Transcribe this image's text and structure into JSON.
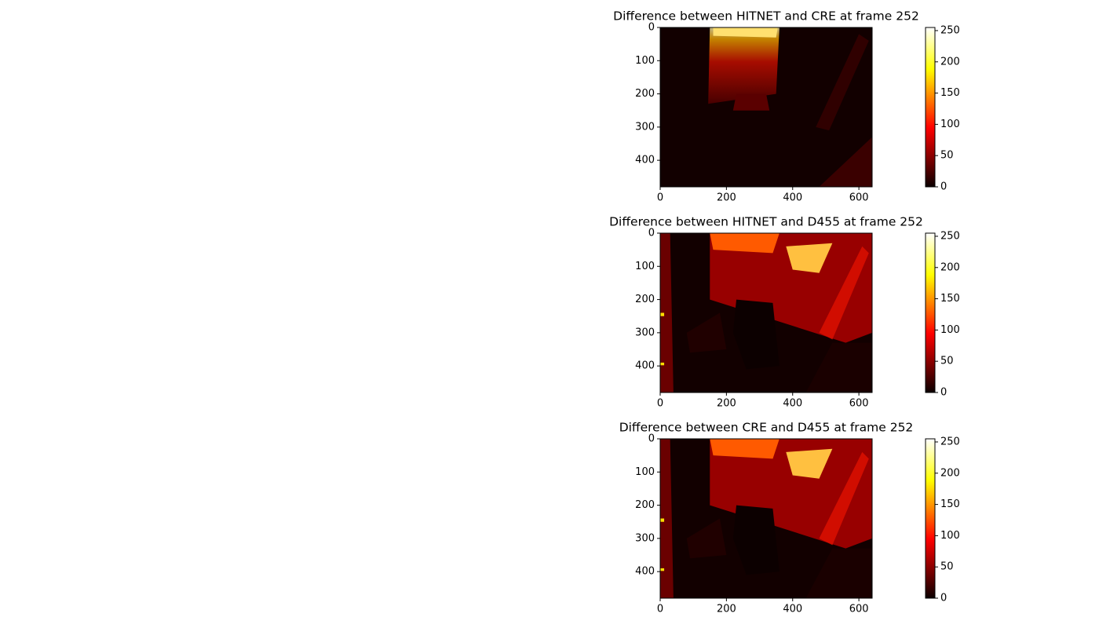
{
  "chart_data": [
    {
      "type": "heatmap",
      "title": "Difference between HITNET and CRE at frame 252",
      "colormap": "hot",
      "xlim": [
        0,
        640
      ],
      "ylim": [
        480,
        0
      ],
      "xticks": [
        0,
        200,
        400,
        600
      ],
      "yticks": [
        0,
        100,
        200,
        300,
        400
      ],
      "clim": [
        0,
        255
      ],
      "cticks": [
        0,
        50,
        100,
        150,
        200,
        250
      ]
    },
    {
      "type": "heatmap",
      "title": "Difference between HITNET and D455 at frame 252",
      "colormap": "hot",
      "xlim": [
        0,
        640
      ],
      "ylim": [
        480,
        0
      ],
      "xticks": [
        0,
        200,
        400,
        600
      ],
      "yticks": [
        0,
        100,
        200,
        300,
        400
      ],
      "clim": [
        0,
        255
      ],
      "cticks": [
        0,
        50,
        100,
        150,
        200,
        250
      ]
    },
    {
      "type": "heatmap",
      "title": "Difference between CRE and D455 at frame 252",
      "colormap": "hot",
      "xlim": [
        0,
        640
      ],
      "ylim": [
        480,
        0
      ],
      "xticks": [
        0,
        200,
        400,
        600
      ],
      "yticks": [
        0,
        100,
        200,
        300,
        400
      ],
      "clim": [
        0,
        255
      ],
      "cticks": [
        0,
        50,
        100,
        150,
        200,
        250
      ]
    }
  ]
}
